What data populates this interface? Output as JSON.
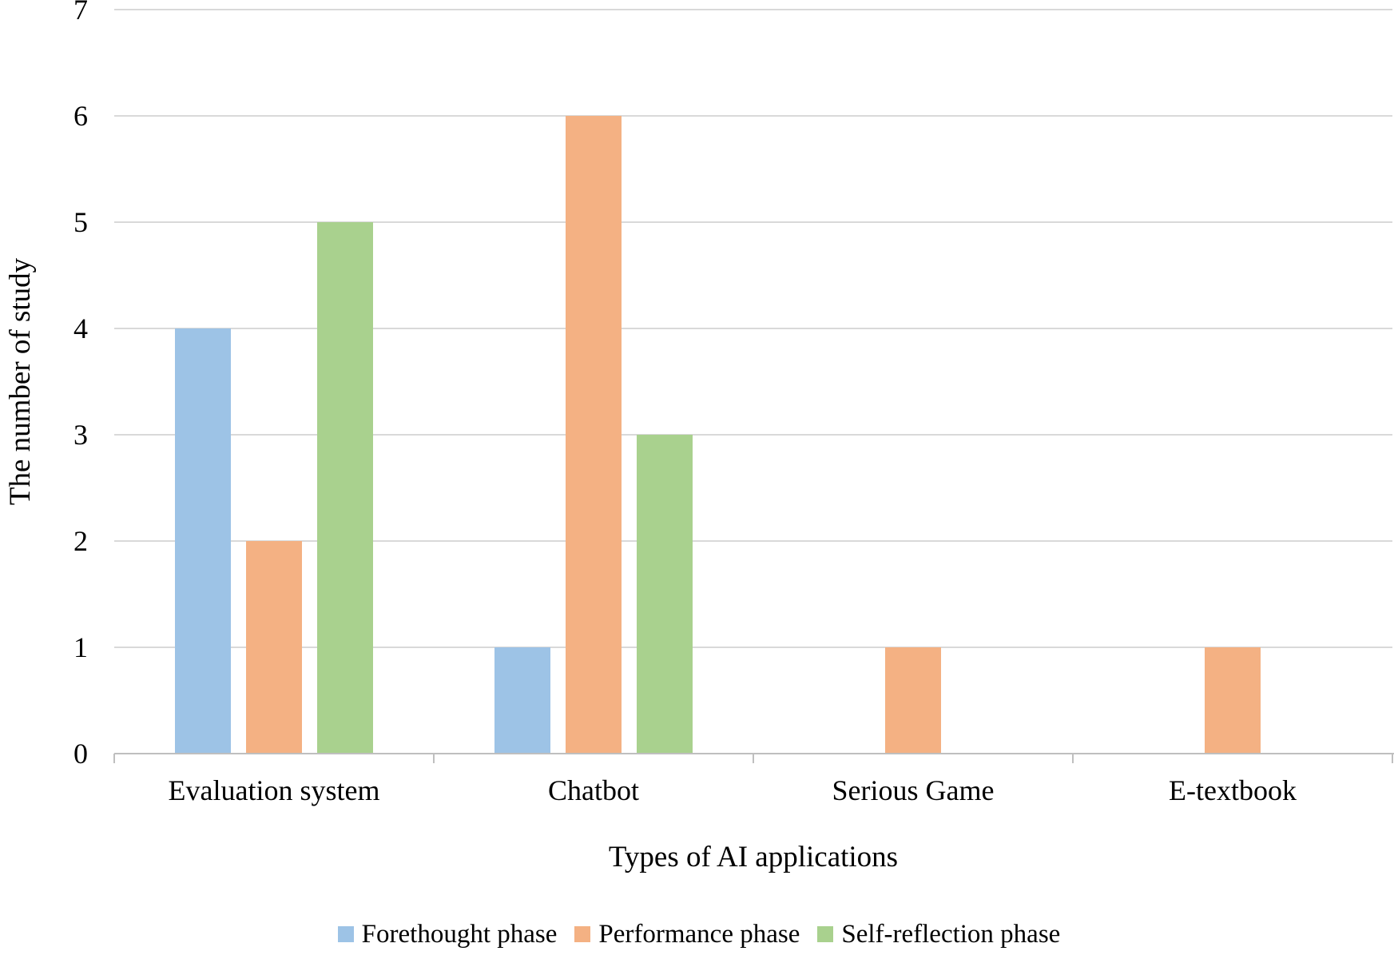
{
  "chart_data": {
    "type": "bar",
    "title": "",
    "categories": [
      "Evaluation system",
      "Chatbot",
      "Serious Game",
      "E-textbook"
    ],
    "series": [
      {
        "name": "Forethought phase",
        "color": "#9DC3E6",
        "values": [
          4,
          1,
          0,
          0
        ]
      },
      {
        "name": "Performance phase",
        "color": "#F4B183",
        "values": [
          2,
          6,
          1,
          1
        ]
      },
      {
        "name": "Self-reflection phase",
        "color": "#A9D18E",
        "values": [
          5,
          3,
          0,
          0
        ]
      }
    ],
    "xlabel": "Types of AI applications",
    "ylabel": "The number of study",
    "ylim": [
      0,
      7
    ],
    "ytick_step": 1,
    "yticks": [
      "0",
      "1",
      "2",
      "3",
      "4",
      "5",
      "6",
      "7"
    ],
    "grid": true,
    "legend_position": "bottom"
  },
  "colors": {
    "gridline": "#D9D9D9",
    "axis": "#BFBFBF",
    "text": "#000000",
    "background": "#FFFFFF"
  }
}
